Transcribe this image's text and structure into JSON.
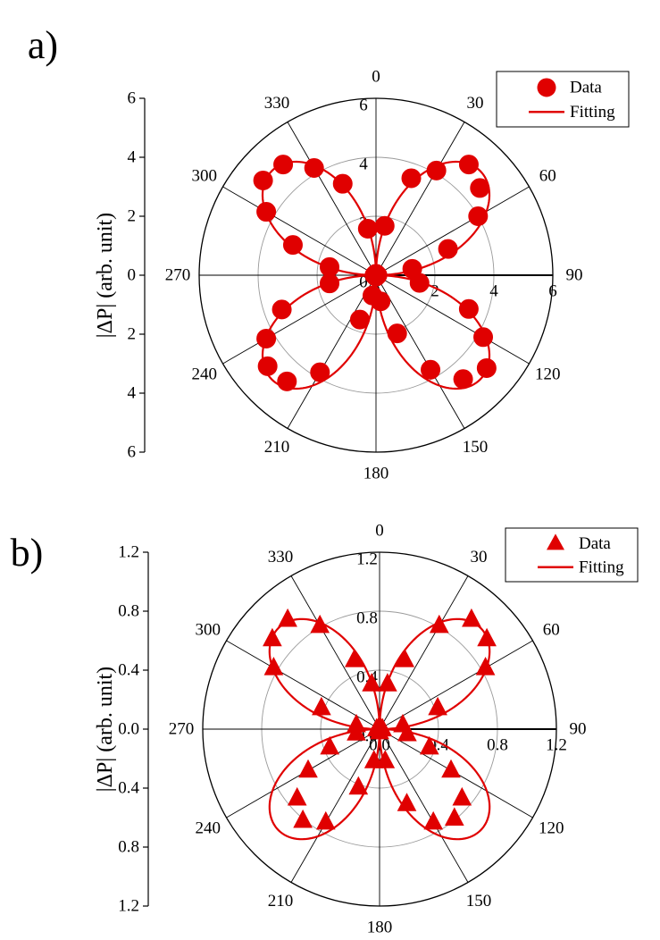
{
  "chart_data": [
    {
      "type": "scatter",
      "subtype": "polar",
      "panel_label": "a)",
      "ylabel": "|ΔP| (arb. unit)",
      "rlim": [
        0,
        6
      ],
      "r_ticks": [
        "0",
        "2",
        "4",
        "6"
      ],
      "y_ticks": [
        "6",
        "4",
        "2",
        "0",
        "2",
        "4",
        "6"
      ],
      "angle_labels": [
        "0",
        "30",
        "60",
        "90",
        "120",
        "150",
        "180",
        "210",
        "240",
        "270",
        "300",
        "330"
      ],
      "grid": true,
      "marker": "circle",
      "color": "#e00000",
      "legend": {
        "position": "top-right",
        "entries": [
          "Data",
          "Fitting"
        ]
      },
      "series": [
        {
          "name": "Data",
          "angle_deg": [
            0,
            10,
            20,
            30,
            40,
            50,
            60,
            70,
            80,
            90,
            100,
            110,
            120,
            130,
            140,
            150,
            160,
            170,
            180,
            190,
            200,
            210,
            220,
            230,
            240,
            250,
            260,
            270,
            280,
            290,
            300,
            310,
            320,
            330,
            340,
            350
          ],
          "r": [
            0.05,
            1.7,
            3.5,
            4.1,
            4.9,
            4.6,
            4.0,
            2.6,
            1.25,
            0.05,
            1.5,
            3.35,
            4.2,
            4.9,
            4.6,
            3.7,
            2.1,
            0.9,
            0.05,
            0.7,
            1.6,
            3.8,
            4.7,
            4.8,
            4.3,
            3.4,
            1.6,
            0.05,
            1.6,
            3.0,
            4.3,
            5.0,
            4.9,
            4.2,
            3.3,
            1.6
          ]
        },
        {
          "name": "Fitting",
          "model": "r = 4.9 |sin 2θ|"
        }
      ]
    },
    {
      "type": "scatter",
      "subtype": "polar",
      "panel_label": "b)",
      "ylabel": "|ΔP| (arb. unit)",
      "rlim": [
        0,
        1.2
      ],
      "r_ticks": [
        "0.0",
        "0.4",
        "0.8",
        "1.2"
      ],
      "y_ticks": [
        "1.2",
        "0.8",
        "0.4",
        "0.0",
        "0.4",
        "0.8",
        "1.2"
      ],
      "angle_labels": [
        "0",
        "30",
        "60",
        "90",
        "120",
        "150",
        "180",
        "210",
        "240",
        "270",
        "300",
        "330"
      ],
      "grid": true,
      "marker": "triangle",
      "color": "#e00000",
      "legend": {
        "position": "top-right",
        "entries": [
          "Data",
          "Fitting"
        ]
      },
      "series": [
        {
          "name": "Data",
          "angle_deg": [
            0,
            10,
            20,
            30,
            40,
            50,
            60,
            70,
            80,
            90,
            100,
            110,
            120,
            130,
            140,
            150,
            160,
            170,
            180,
            190,
            200,
            210,
            220,
            230,
            240,
            250,
            260,
            270,
            280,
            290,
            300,
            310,
            320,
            330,
            340,
            350
          ],
          "r": [
            0.02,
            0.31,
            0.5,
            0.81,
            0.97,
            0.95,
            0.83,
            0.42,
            0.16,
            0.02,
            0.19,
            0.36,
            0.56,
            0.73,
            0.79,
            0.73,
            0.54,
            0.22,
            0.02,
            0.22,
            0.42,
            0.73,
            0.81,
            0.73,
            0.56,
            0.36,
            0.16,
            0.02,
            0.16,
            0.42,
            0.83,
            0.95,
            0.97,
            0.81,
            0.5,
            0.31
          ]
        },
        {
          "name": "Fitting",
          "model": "r = 0.97 |sin 2θ|"
        }
      ]
    }
  ]
}
